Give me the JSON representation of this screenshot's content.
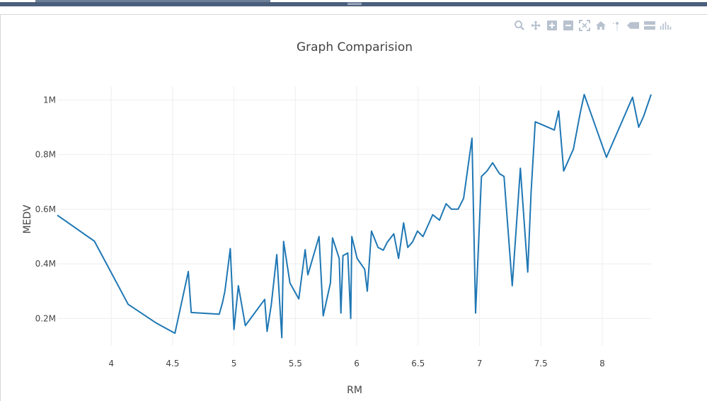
{
  "modebar": {
    "buttons": [
      {
        "name": "zoom-icon"
      },
      {
        "name": "pan-icon"
      },
      {
        "name": "zoom-in-icon"
      },
      {
        "name": "zoom-out-icon"
      },
      {
        "name": "autoscale-icon"
      },
      {
        "name": "reset-axes-icon"
      },
      {
        "name": "spike-lines-icon"
      },
      {
        "name": "hover-closest-icon"
      },
      {
        "name": "hover-compare-icon"
      },
      {
        "name": "plotly-logo-icon"
      }
    ]
  },
  "chart_data": {
    "type": "line",
    "title": "Graph Comparision",
    "xlabel": "RM",
    "ylabel": "MEDV",
    "xlim": [
      3.561,
      8.398
    ],
    "ylim": [
      0.1,
      1.05
    ],
    "grid": true,
    "legend": "none",
    "line_color": "#1f77b4",
    "xticks": [
      4,
      4.5,
      5,
      5.5,
      6,
      6.5,
      7,
      7.5,
      8
    ],
    "xtick_labels": [
      "4",
      "4.5",
      "5",
      "5.5",
      "6",
      "6.5",
      "7",
      "7.5",
      "8"
    ],
    "yticks": [
      0.2,
      0.4,
      0.6,
      0.8,
      1.0
    ],
    "ytick_labels": [
      "0.2M",
      "0.4M",
      "0.6M",
      "0.8M",
      "1M"
    ],
    "series": [
      {
        "x": [
          3.561,
          3.863,
          4.138,
          4.368,
          4.519,
          4.628,
          4.652,
          4.88,
          4.906,
          4.926,
          4.97,
          5.0,
          5.036,
          5.093,
          5.25,
          5.27,
          5.304,
          5.349,
          5.39,
          5.404,
          5.456,
          5.528,
          5.58,
          5.602,
          5.693,
          5.727,
          5.786,
          5.803,
          5.857,
          5.871,
          5.888,
          5.927,
          5.951,
          5.96,
          6.003,
          6.065,
          6.086,
          6.12,
          6.174,
          6.216,
          6.25,
          6.302,
          6.341,
          6.382,
          6.416,
          6.454,
          6.495,
          6.54,
          6.619,
          6.674,
          6.728,
          6.772,
          6.826,
          6.871,
          6.939,
          6.968,
          7.016,
          7.061,
          7.107,
          7.163,
          7.2,
          7.267,
          7.333,
          7.393,
          7.42,
          7.454,
          7.61,
          7.645,
          7.686,
          7.765,
          7.82,
          7.853,
          8.034,
          8.247,
          8.297,
          8.337,
          8.398
        ],
        "y": [
          0.578,
          0.483,
          0.252,
          0.183,
          0.146,
          0.372,
          0.222,
          0.216,
          0.257,
          0.3,
          0.456,
          0.16,
          0.32,
          0.174,
          0.27,
          0.153,
          0.25,
          0.434,
          0.13,
          0.482,
          0.33,
          0.272,
          0.452,
          0.36,
          0.5,
          0.21,
          0.33,
          0.495,
          0.42,
          0.22,
          0.43,
          0.44,
          0.2,
          0.5,
          0.42,
          0.38,
          0.3,
          0.52,
          0.46,
          0.45,
          0.48,
          0.51,
          0.42,
          0.55,
          0.46,
          0.48,
          0.52,
          0.5,
          0.58,
          0.56,
          0.62,
          0.6,
          0.6,
          0.64,
          0.86,
          0.22,
          0.72,
          0.74,
          0.77,
          0.73,
          0.72,
          0.32,
          0.75,
          0.37,
          0.66,
          0.92,
          0.89,
          0.96,
          0.74,
          0.82,
          0.95,
          1.02,
          0.79,
          1.01,
          0.9,
          0.94,
          1.02
        ]
      }
    ]
  }
}
